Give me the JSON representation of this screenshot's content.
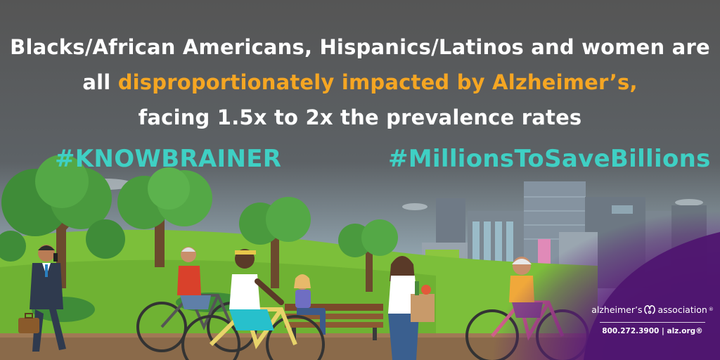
{
  "headline": {
    "line1": "Blacks/African Americans, Hispanics/Latinos and women are",
    "line2_prefix": "all ",
    "line2_highlight": "disproportionately impacted by Alzheimer’s,",
    "line3": "facing 1.5x to 2x the prevalence rates"
  },
  "hashtags": {
    "left": "#KNOWBRAINER",
    "right": "#MillionsToSaveBillions"
  },
  "logo": {
    "name_left": "alzheimer’s",
    "name_right": "association",
    "registered": "®",
    "contact": "800.272.3900 | alz.org®",
    "icon": "alz-purple-logo-icon"
  },
  "colors": {
    "background": "#555555",
    "highlight": "#f5a623",
    "hashtag": "#3fd0c4",
    "purple": "#5b1a7a"
  },
  "icons": [
    "tree-icon",
    "building-icon",
    "bicycle-icon",
    "bench-icon",
    "person-icon",
    "briefcase-icon",
    "grocery-bag-icon",
    "phone-icon"
  ]
}
